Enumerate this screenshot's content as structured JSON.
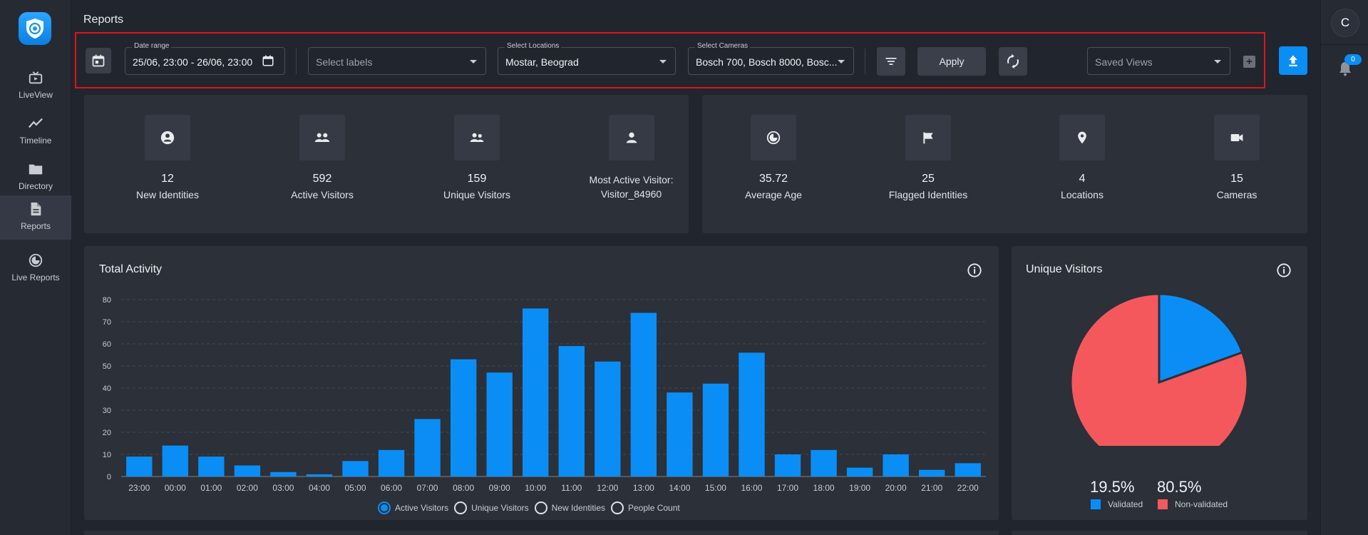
{
  "nav": {
    "items": [
      {
        "label": "LiveView",
        "icon": "tv-icon"
      },
      {
        "label": "Timeline",
        "icon": "trend-icon"
      },
      {
        "label": "Directory",
        "icon": "folder-icon"
      },
      {
        "label": "Reports",
        "icon": "document-icon",
        "active": true
      },
      {
        "label": "Live Reports",
        "icon": "live-report-icon"
      }
    ]
  },
  "user": {
    "initial": "C",
    "notifications": "0"
  },
  "page": {
    "title": "Reports"
  },
  "filters": {
    "date_range_label": "Date range",
    "date_range_value": "25/06, 23:00 - 26/06, 23:00",
    "labels_placeholder": "Select labels",
    "locations_label": "Select Locations",
    "locations_value": "Mostar, Beograd",
    "cameras_label": "Select Cameras",
    "cameras_value": "Bosch 700, Bosch 8000, Bosc...",
    "apply_label": "Apply",
    "saved_views_placeholder": "Saved Views"
  },
  "stats_left": [
    {
      "value": "12",
      "label": "New Identities",
      "icon": "person-circle-icon"
    },
    {
      "value": "592",
      "label": "Active Visitors",
      "icon": "group-icon"
    },
    {
      "value": "159",
      "label": "Unique Visitors",
      "icon": "pair-icon"
    },
    {
      "line1": "Most Active Visitor:",
      "line2": "Visitor_84960",
      "icon": "person-icon"
    }
  ],
  "stats_right": [
    {
      "value": "35.72",
      "label": "Average Age",
      "icon": "age-icon"
    },
    {
      "value": "25",
      "label": "Flagged Identities",
      "icon": "flag-icon"
    },
    {
      "value": "4",
      "label": "Locations",
      "icon": "location-pin-icon"
    },
    {
      "value": "15",
      "label": "Cameras",
      "icon": "camera-icon"
    }
  ],
  "activity": {
    "title": "Total Activity",
    "radio_options": [
      {
        "label": "Active Visitors",
        "selected": true
      },
      {
        "label": "Unique Visitors",
        "selected": false
      },
      {
        "label": "New Identities",
        "selected": false
      },
      {
        "label": "People Count",
        "selected": false
      }
    ]
  },
  "unique": {
    "title": "Unique Visitors",
    "validated_pct": "19.5%",
    "nonvalidated_pct": "80.5%",
    "legend_validated": "Validated",
    "legend_nonvalidated": "Non-validated"
  },
  "colors": {
    "accent": "#0a8ef5",
    "bar": "#0a8ef5",
    "validated": "#0a8ef5",
    "nonvalidated": "#f5585c",
    "toolbar_border": "#e0141b"
  },
  "chart_data": [
    {
      "type": "bar",
      "title": "Total Activity",
      "categories": [
        "23:00",
        "00:00",
        "01:00",
        "02:00",
        "03:00",
        "04:00",
        "05:00",
        "06:00",
        "07:00",
        "08:00",
        "09:00",
        "10:00",
        "11:00",
        "12:00",
        "13:00",
        "14:00",
        "15:00",
        "16:00",
        "17:00",
        "18:00",
        "19:00",
        "20:00",
        "21:00",
        "22:00"
      ],
      "series": [
        {
          "name": "Active Visitors",
          "values": [
            9,
            14,
            9,
            5,
            2,
            1,
            7,
            12,
            26,
            53,
            47,
            76,
            59,
            52,
            74,
            38,
            42,
            56,
            10,
            12,
            4,
            10,
            3,
            6
          ]
        }
      ],
      "ylim": [
        0,
        80
      ],
      "yticks": [
        0,
        10,
        20,
        30,
        40,
        50,
        60,
        70,
        80
      ],
      "grid": true
    },
    {
      "type": "pie",
      "title": "Unique Visitors",
      "labels": [
        "Validated",
        "Non-validated"
      ],
      "values": [
        19.5,
        80.5
      ]
    }
  ]
}
